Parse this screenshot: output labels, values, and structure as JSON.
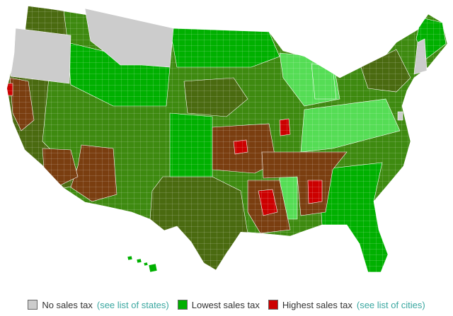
{
  "colors": {
    "no_tax": "#cccccc",
    "low": "#00b000",
    "low_light": "#55dd55",
    "mid": "#3e8a10",
    "dark": "#4a6a10",
    "high_brown": "#7a3e10",
    "highest": "#cc0000",
    "border": "#ffffff",
    "link": "#3aa7a0"
  },
  "legend": {
    "no_tax": {
      "label": "No sales tax",
      "link": "(see list of states)"
    },
    "lowest": {
      "label": "Lowest sales tax"
    },
    "highest": {
      "label": "Highest sales tax",
      "link": "(see list of cities)"
    }
  }
}
